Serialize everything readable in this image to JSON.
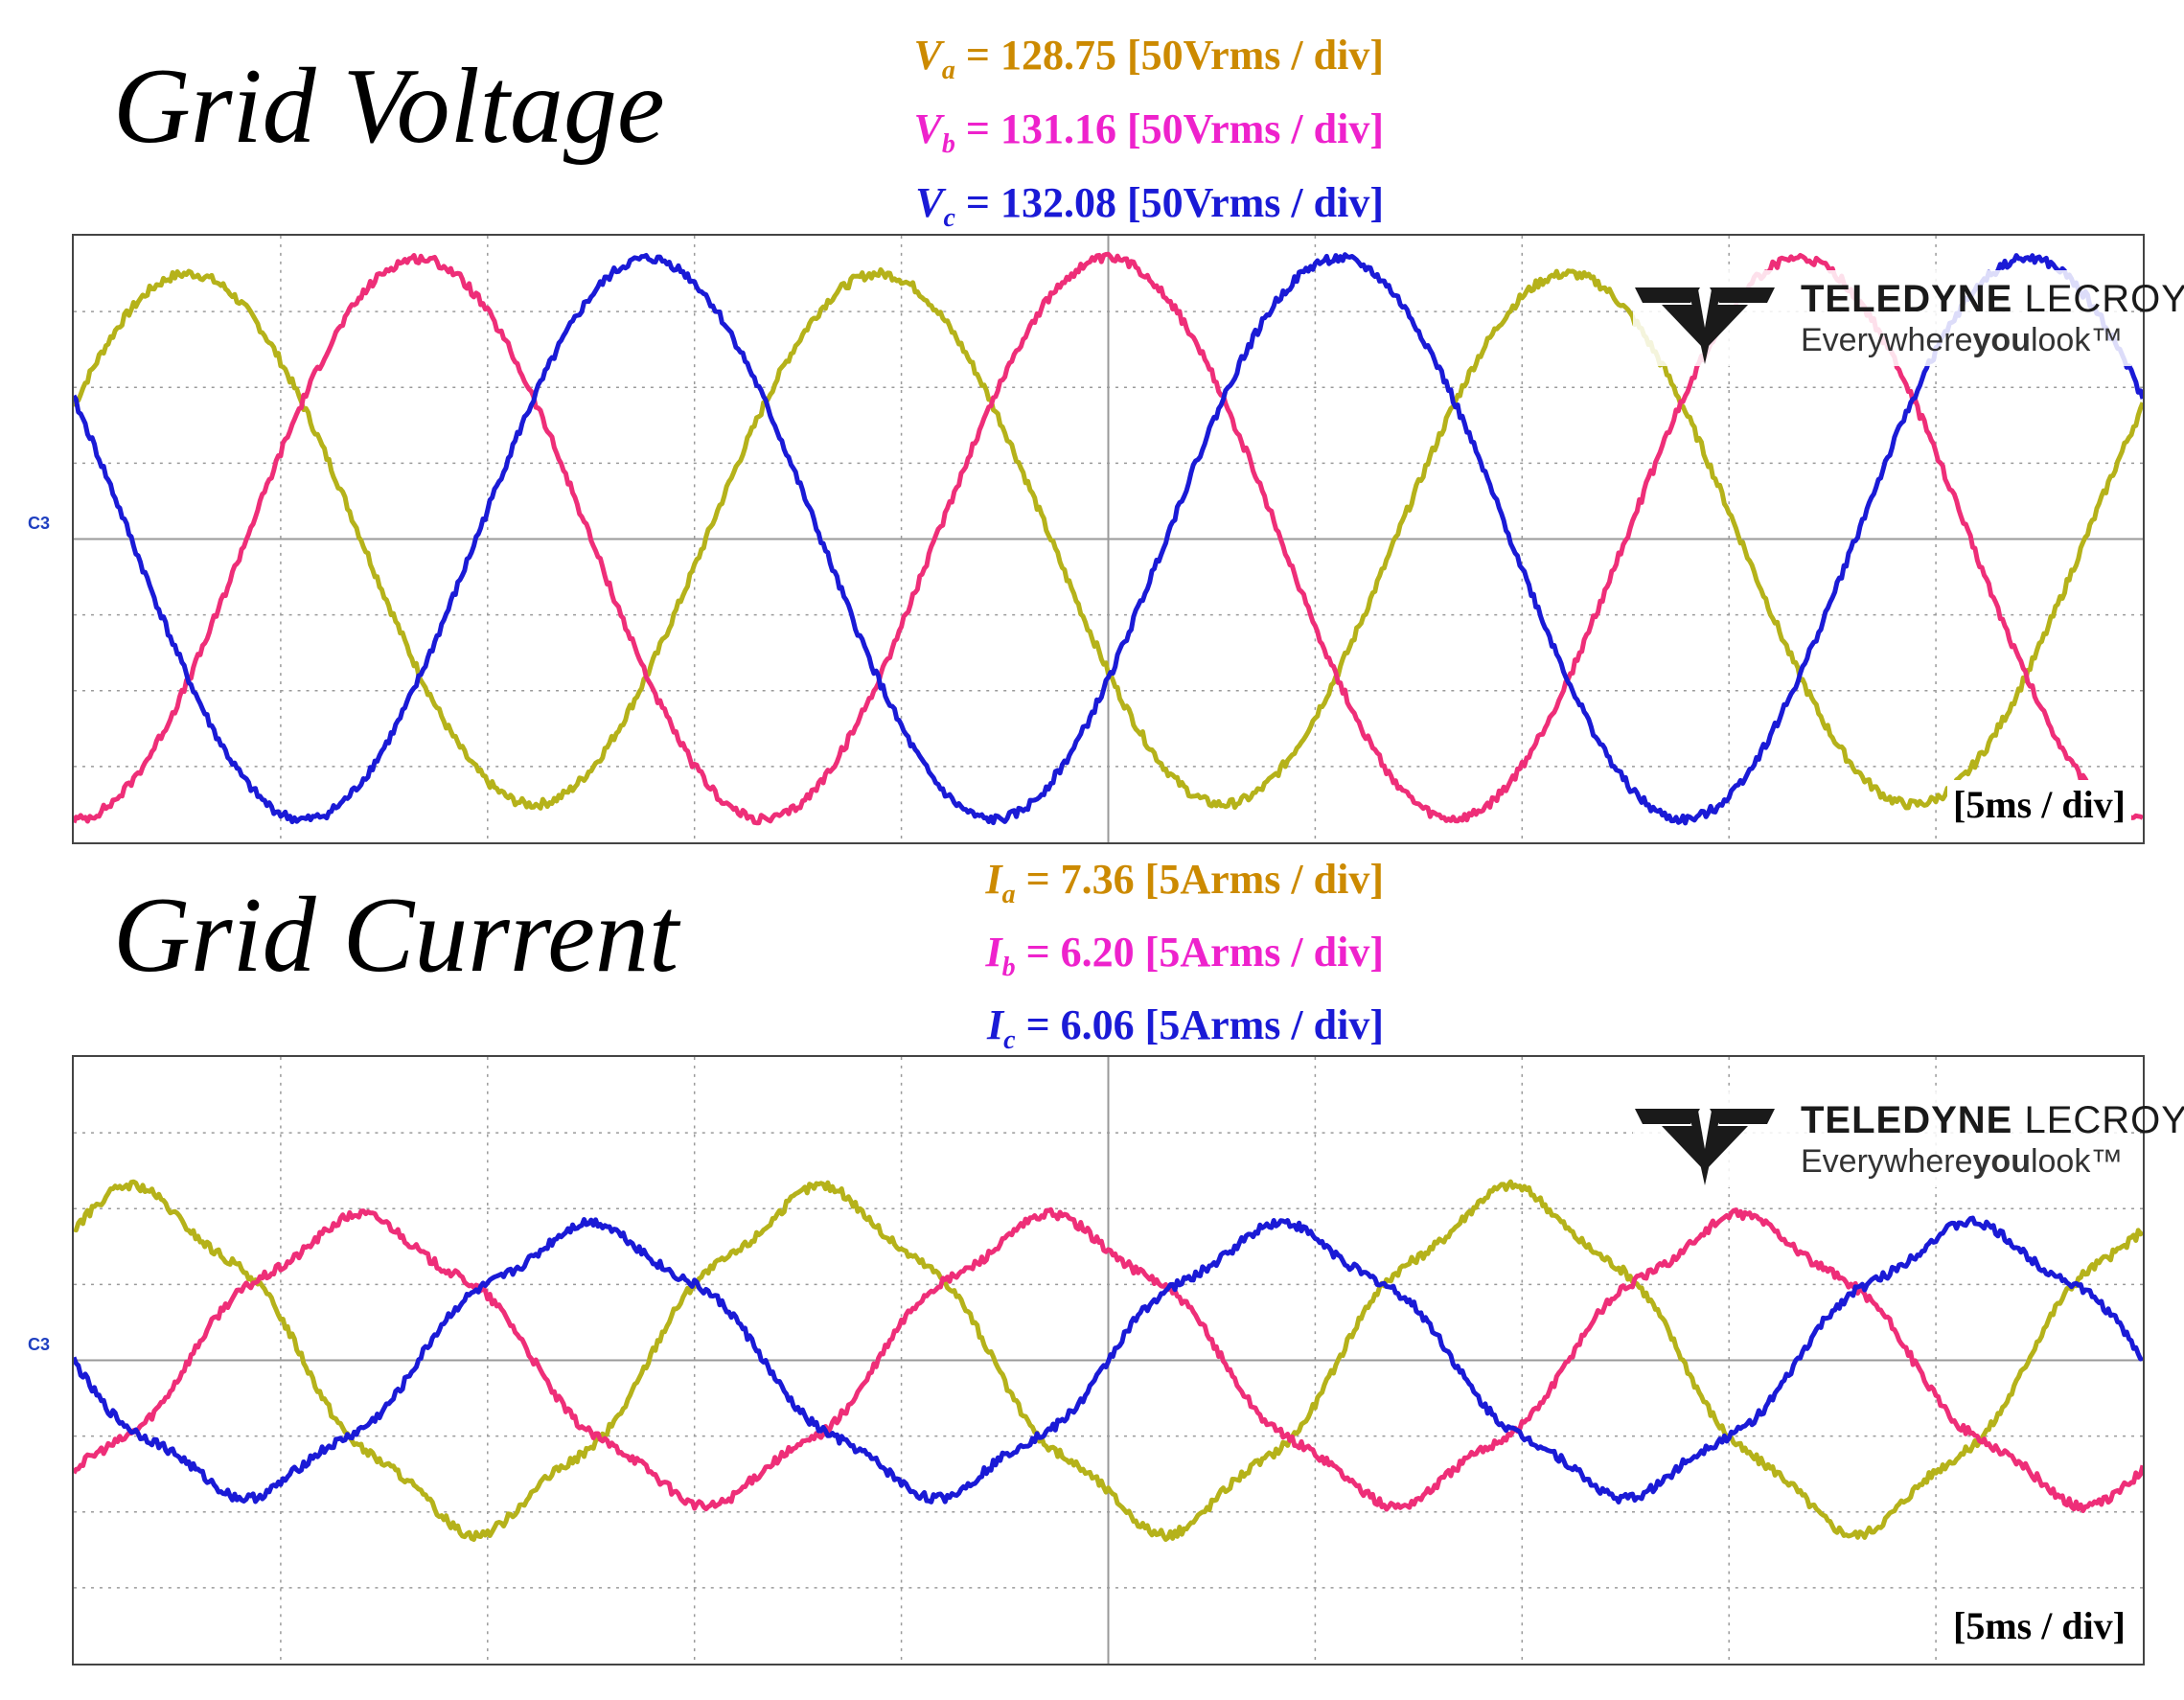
{
  "colors": {
    "phase_a": "#b5b21a",
    "phase_b": "#ee2e78",
    "phase_c": "#1a1ad6",
    "label_a": "#cc8a00",
    "label_b": "#ee22cc",
    "label_c": "#1a1ad6",
    "grid": "#9a9a9a"
  },
  "brand": {
    "name_bold": "TELEDYNE",
    "name_light": "LECROY",
    "tag_1": "Everywhere",
    "tag_2": "you",
    "tag_3": "look",
    "tag_tm": "™",
    "icon": "teledyne-logo-icon"
  },
  "chart_data": [
    {
      "type": "line",
      "title": "Grid Voltage",
      "channel_label": "C3",
      "time_scale": "[5ms / div]",
      "x_divisions": 10,
      "y_divisions": 8,
      "grid": true,
      "legend_placement": "top-right",
      "legend": [
        {
          "symbol": "V",
          "sub": "a",
          "text": " = 128.75 [50Vrms / div]"
        },
        {
          "symbol": "V",
          "sub": "b",
          "text": " = 131.16 [50Vrms / div]"
        },
        {
          "symbol": "V",
          "sub": "c",
          "text": " = 132.08 [50Vrms / div]"
        }
      ],
      "frequency_hz": 60,
      "x_range_ms": [
        0,
        50
      ],
      "y_range_div": [
        -4,
        4
      ],
      "series": [
        {
          "name": "Va",
          "amplitude_div": 3.5,
          "phase_deg": 30
        },
        {
          "name": "Vb",
          "amplitude_div": 3.7,
          "phase_deg": -90
        },
        {
          "name": "Vc",
          "amplitude_div": 3.7,
          "phase_deg": 150
        }
      ]
    },
    {
      "type": "line",
      "title": "Grid Current",
      "channel_label": "C3",
      "time_scale": "[5ms / div]",
      "x_divisions": 10,
      "y_divisions": 8,
      "grid": true,
      "legend_placement": "top-right",
      "legend": [
        {
          "symbol": "I",
          "sub": "a",
          "text": " = 7.36 [5Arms / div]"
        },
        {
          "symbol": "I",
          "sub": "b",
          "text": " = 6.20 [5Arms / div]"
        },
        {
          "symbol": "I",
          "sub": "c",
          "text": " = 6.06 [5Arms / div]"
        }
      ],
      "frequency_hz": 60,
      "x_range_ms": [
        0,
        50
      ],
      "y_range_div": [
        -4,
        4
      ],
      "series": [
        {
          "name": "Ia",
          "amplitude_div": 2.15,
          "phase_deg": 60
        },
        {
          "name": "Ib",
          "amplitude_div": 1.8,
          "phase_deg": -60
        },
        {
          "name": "Ic",
          "amplitude_div": 1.7,
          "phase_deg": 180
        }
      ]
    }
  ]
}
